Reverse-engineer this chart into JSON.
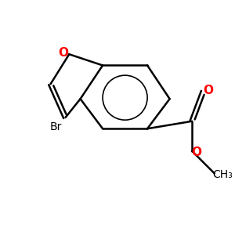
{
  "bg_color": "#ffffff",
  "bond_color": "#000000",
  "bond_width": 1.8,
  "O_color": "#ff0000",
  "Br_color": "#000000",
  "font_size": 10,
  "figsize": [
    3.0,
    3.0
  ],
  "dpi": 100,
  "xlim": [
    0,
    10
  ],
  "ylim": [
    0,
    10
  ]
}
